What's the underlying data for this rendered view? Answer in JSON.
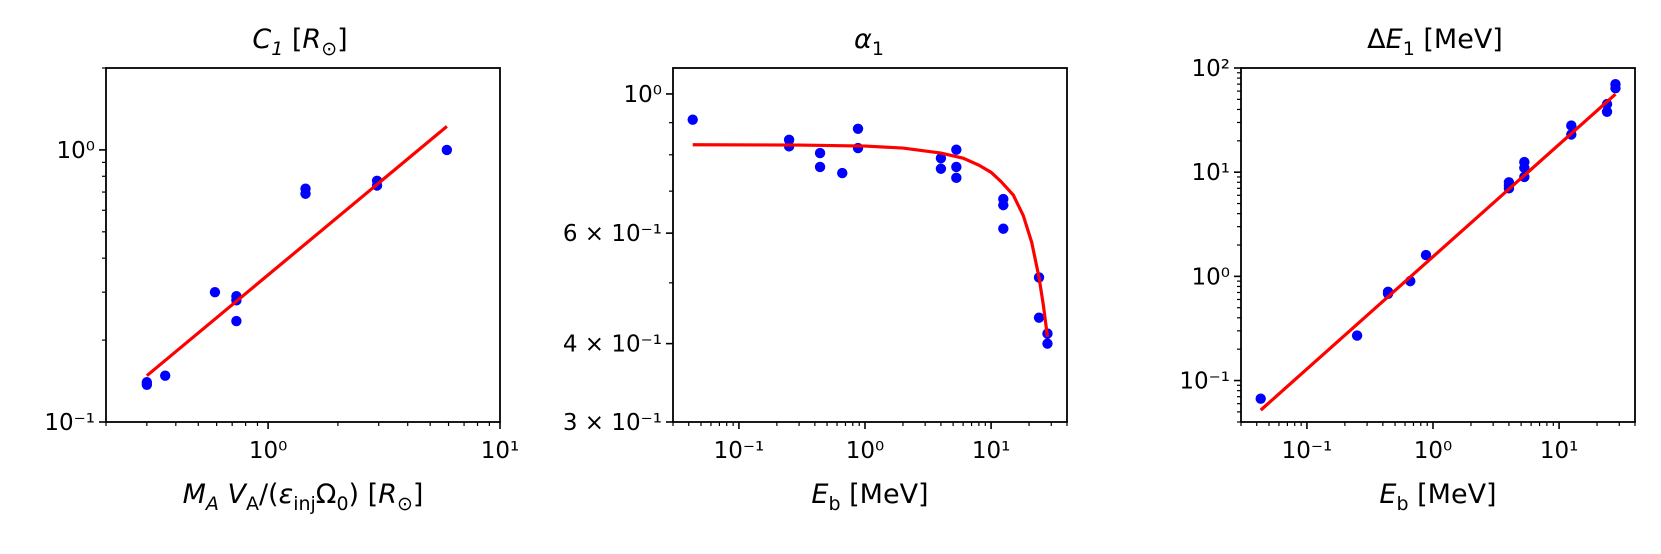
{
  "chart_data": [
    {
      "type": "scatter",
      "title": "C₁ [R⊙]",
      "xlabel": "M_A V_A/(ε_inj Ω_0) [R⊙]",
      "ylabel": "",
      "xscale": "log",
      "yscale": "log",
      "xlim": [
        0.2,
        10
      ],
      "ylim": [
        0.1,
        2
      ],
      "xticks": [
        {
          "value": 1,
          "label": "10⁰"
        },
        {
          "value": 10,
          "label": "10¹"
        }
      ],
      "yticks": [
        {
          "value": 0.1,
          "label": "10⁻¹"
        },
        {
          "value": 1,
          "label": "10⁰"
        }
      ],
      "grid": false,
      "series": [
        {
          "kind": "points",
          "color": "#0000ff",
          "x": [
            0.3,
            0.3,
            0.36,
            0.59,
            0.73,
            0.73,
            0.73,
            1.45,
            1.45,
            2.95,
            2.95,
            5.9
          ],
          "y": [
            0.14,
            0.137,
            0.148,
            0.3,
            0.29,
            0.28,
            0.235,
            0.72,
            0.69,
            0.77,
            0.74,
            1.0
          ]
        },
        {
          "kind": "line",
          "color": "#ff0000",
          "x": [
            0.3,
            5.9
          ],
          "y": [
            0.148,
            1.22
          ]
        }
      ]
    },
    {
      "type": "scatter",
      "title": "α₁",
      "xlabel": "E_b [MeV]",
      "ylabel": "",
      "xscale": "log",
      "yscale": "log",
      "xlim": [
        0.03,
        40
      ],
      "ylim": [
        0.3,
        1.1
      ],
      "xticks": [
        {
          "value": 0.1,
          "label": "10⁻¹"
        },
        {
          "value": 1,
          "label": "10⁰"
        },
        {
          "value": 10,
          "label": "10¹"
        }
      ],
      "yticks": [
        {
          "value": 1.0,
          "label": "10⁰"
        },
        {
          "value": 0.6,
          "label": "6 × 10⁻¹"
        },
        {
          "value": 0.4,
          "label": "4 × 10⁻¹"
        },
        {
          "value": 0.3,
          "label": "3 × 10⁻¹"
        }
      ],
      "grid": false,
      "series": [
        {
          "kind": "points",
          "color": "#0000ff",
          "x": [
            0.043,
            0.25,
            0.25,
            0.44,
            0.44,
            0.66,
            0.88,
            0.88,
            4.0,
            4.0,
            5.3,
            5.3,
            5.3,
            12.5,
            12.5,
            12.5,
            24,
            24,
            28,
            28
          ],
          "y": [
            0.91,
            0.845,
            0.825,
            0.805,
            0.765,
            0.748,
            0.88,
            0.82,
            0.79,
            0.76,
            0.815,
            0.765,
            0.735,
            0.68,
            0.665,
            0.61,
            0.51,
            0.44,
            0.415,
            0.4
          ]
        },
        {
          "kind": "line",
          "color": "#ff0000",
          "x": [
            0.043,
            0.3,
            1,
            2,
            4,
            6,
            8,
            10,
            12,
            15,
            18,
            21,
            24,
            26,
            28
          ],
          "y": [
            0.83,
            0.829,
            0.826,
            0.82,
            0.805,
            0.79,
            0.77,
            0.75,
            0.725,
            0.69,
            0.64,
            0.58,
            0.51,
            0.46,
            0.41
          ]
        }
      ]
    },
    {
      "type": "scatter",
      "title": "ΔE₁ [MeV]",
      "xlabel": "E_b [MeV]",
      "ylabel": "",
      "xscale": "log",
      "yscale": "log",
      "xlim": [
        0.03,
        40
      ],
      "ylim": [
        0.04,
        100
      ],
      "xticks": [
        {
          "value": 0.1,
          "label": "10⁻¹"
        },
        {
          "value": 1,
          "label": "10⁰"
        },
        {
          "value": 10,
          "label": "10¹"
        }
      ],
      "yticks": [
        {
          "value": 0.1,
          "label": "10⁻¹"
        },
        {
          "value": 1,
          "label": "10⁰"
        },
        {
          "value": 10,
          "label": "10¹"
        },
        {
          "value": 100,
          "label": "10²"
        }
      ],
      "grid": false,
      "series": [
        {
          "kind": "points",
          "color": "#0000ff",
          "x": [
            0.043,
            0.25,
            0.44,
            0.44,
            0.66,
            0.88,
            4.0,
            4.0,
            4.0,
            5.3,
            5.3,
            5.3,
            12.5,
            12.5,
            24,
            24,
            28,
            28
          ],
          "y": [
            0.067,
            0.27,
            0.71,
            0.68,
            0.9,
            1.6,
            8.0,
            7.5,
            7.0,
            12.5,
            11.0,
            9.0,
            28.0,
            23.0,
            45.0,
            38.0,
            70.0,
            64.0
          ]
        },
        {
          "kind": "line",
          "color": "#ff0000",
          "x": [
            0.043,
            28
          ],
          "y": [
            0.052,
            56
          ]
        }
      ]
    }
  ]
}
